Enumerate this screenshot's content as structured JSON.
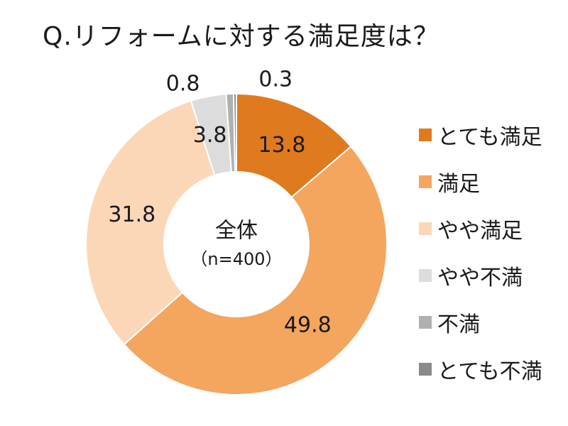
{
  "chart_data": {
    "type": "pie",
    "title": "Q.リフォームに対する満足度は？",
    "center_label": "全体",
    "center_sublabel": "（n=400）",
    "categories": [
      "とても満足",
      "満足",
      "やや満足",
      "やや不満",
      "不満",
      "とても不満"
    ],
    "values": [
      13.8,
      49.8,
      31.8,
      3.8,
      0.8,
      0.3
    ],
    "value_labels": [
      "13.8",
      "49.8",
      "31.8",
      "3.8",
      "0.8",
      "0.3"
    ],
    "colors": [
      "#e07a1f",
      "#f4a55e",
      "#fbd7b8",
      "#dcdcdc",
      "#b0b0b0",
      "#8a8a8a"
    ],
    "label_colors": [
      "#1a1a1a",
      "#1a1a1a",
      "#1a1a1a",
      "#1a1a1a",
      "#1a1a1a",
      "#1a1a1a"
    ],
    "legend_position": "right"
  }
}
